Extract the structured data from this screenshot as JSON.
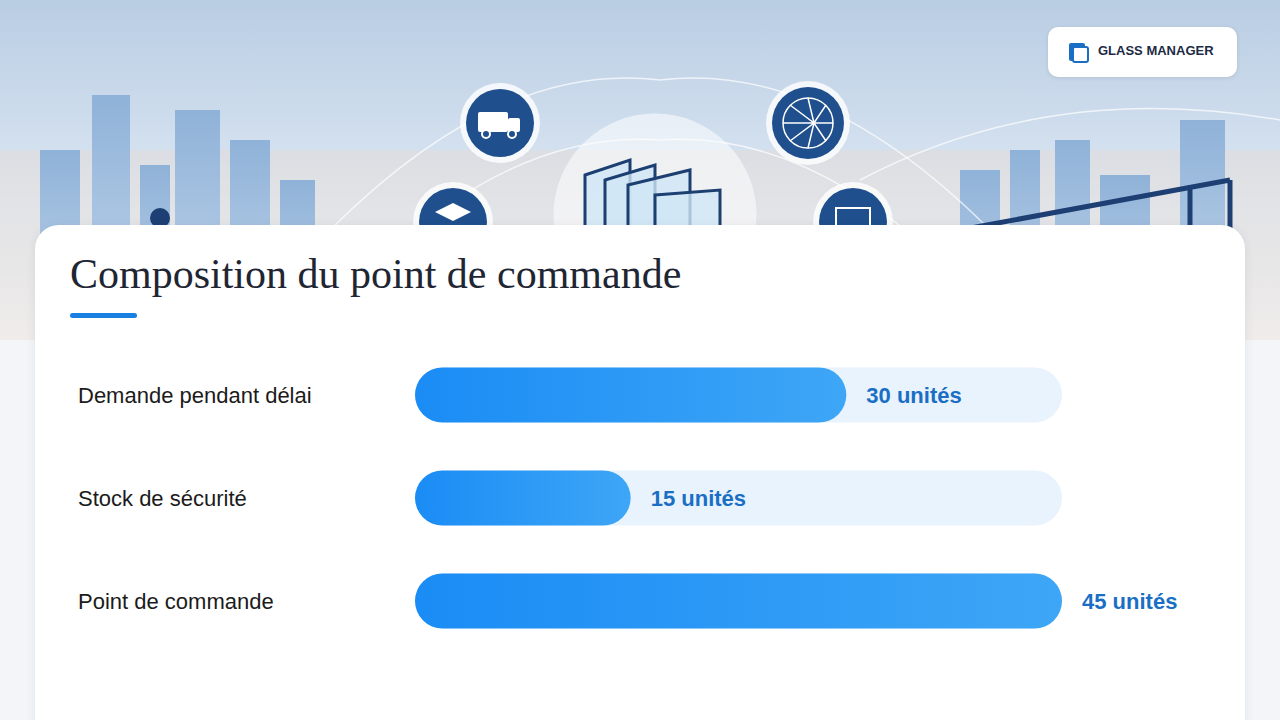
{
  "header": {
    "logo": "GLASS MANAGER"
  },
  "chart_data": {
    "type": "bar",
    "orientation": "horizontal",
    "title": "Composition du point de commande",
    "categories": [
      "Demande pendant délai",
      "Stock de sécurité",
      "Point de commande"
    ],
    "values": [
      30,
      15,
      45
    ],
    "value_labels": [
      "30 unités",
      "15 unités",
      "45 unités"
    ],
    "color": "#1a8cf5",
    "xlim": [
      0,
      45
    ],
    "grid": false,
    "data_labels": true,
    "tick_labels": "y"
  }
}
